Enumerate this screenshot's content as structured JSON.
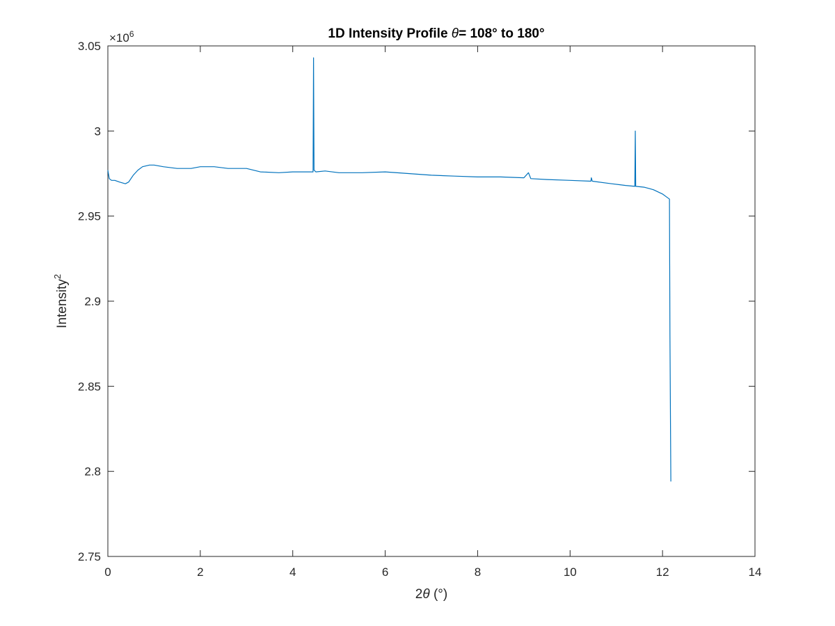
{
  "chart_data": {
    "type": "line",
    "title": {
      "prefix": "1D Intensity Profile ",
      "symbol": "θ",
      "suffix": "= 108° to 180°"
    },
    "xlabel": {
      "prefix": "2",
      "symbol": "θ",
      "suffix": " (°)"
    },
    "ylabel": {
      "base": "Intensity",
      "superscript": "2"
    },
    "y_exponent": {
      "base": "×10",
      "power": "6"
    },
    "xlim": [
      0,
      14
    ],
    "ylim": [
      2.75,
      3.05
    ],
    "xticks": [
      "0",
      "2",
      "4",
      "6",
      "8",
      "10",
      "12",
      "14"
    ],
    "yticks": [
      "2.75",
      "2.8",
      "2.85",
      "2.9",
      "2.95",
      "3",
      "3.05"
    ],
    "grid": false,
    "series": [
      {
        "color": "#0072BD",
        "points": [
          [
            0.0,
            2.977
          ],
          [
            0.03,
            2.972
          ],
          [
            0.08,
            2.971
          ],
          [
            0.15,
            2.971
          ],
          [
            0.25,
            2.97
          ],
          [
            0.38,
            2.969
          ],
          [
            0.45,
            2.97
          ],
          [
            0.55,
            2.974
          ],
          [
            0.65,
            2.977
          ],
          [
            0.75,
            2.979
          ],
          [
            0.9,
            2.98
          ],
          [
            1.0,
            2.98
          ],
          [
            1.2,
            2.979
          ],
          [
            1.5,
            2.978
          ],
          [
            1.8,
            2.978
          ],
          [
            2.0,
            2.979
          ],
          [
            2.3,
            2.979
          ],
          [
            2.6,
            2.978
          ],
          [
            3.0,
            2.978
          ],
          [
            3.3,
            2.976
          ],
          [
            3.7,
            2.9755
          ],
          [
            4.0,
            2.976
          ],
          [
            4.42,
            2.976
          ],
          [
            4.44,
            2.976
          ],
          [
            4.45,
            3.043
          ],
          [
            4.46,
            2.977
          ],
          [
            4.5,
            2.976
          ],
          [
            4.7,
            2.9765
          ],
          [
            5.0,
            2.9755
          ],
          [
            5.5,
            2.9755
          ],
          [
            6.0,
            2.976
          ],
          [
            6.5,
            2.975
          ],
          [
            7.0,
            2.974
          ],
          [
            7.5,
            2.9735
          ],
          [
            8.0,
            2.973
          ],
          [
            8.5,
            2.973
          ],
          [
            9.0,
            2.9725
          ],
          [
            9.1,
            2.9755
          ],
          [
            9.15,
            2.972
          ],
          [
            9.5,
            2.9715
          ],
          [
            10.0,
            2.971
          ],
          [
            10.45,
            2.9705
          ],
          [
            10.46,
            2.9725
          ],
          [
            10.48,
            2.9705
          ],
          [
            10.9,
            2.969
          ],
          [
            11.2,
            2.968
          ],
          [
            11.4,
            2.9675
          ],
          [
            11.41,
            3.0
          ],
          [
            11.42,
            2.9675
          ],
          [
            11.6,
            2.967
          ],
          [
            11.8,
            2.9655
          ],
          [
            12.0,
            2.963
          ],
          [
            12.1,
            2.961
          ],
          [
            12.15,
            2.96
          ],
          [
            12.16,
            2.88
          ],
          [
            12.18,
            2.794
          ]
        ]
      }
    ]
  }
}
